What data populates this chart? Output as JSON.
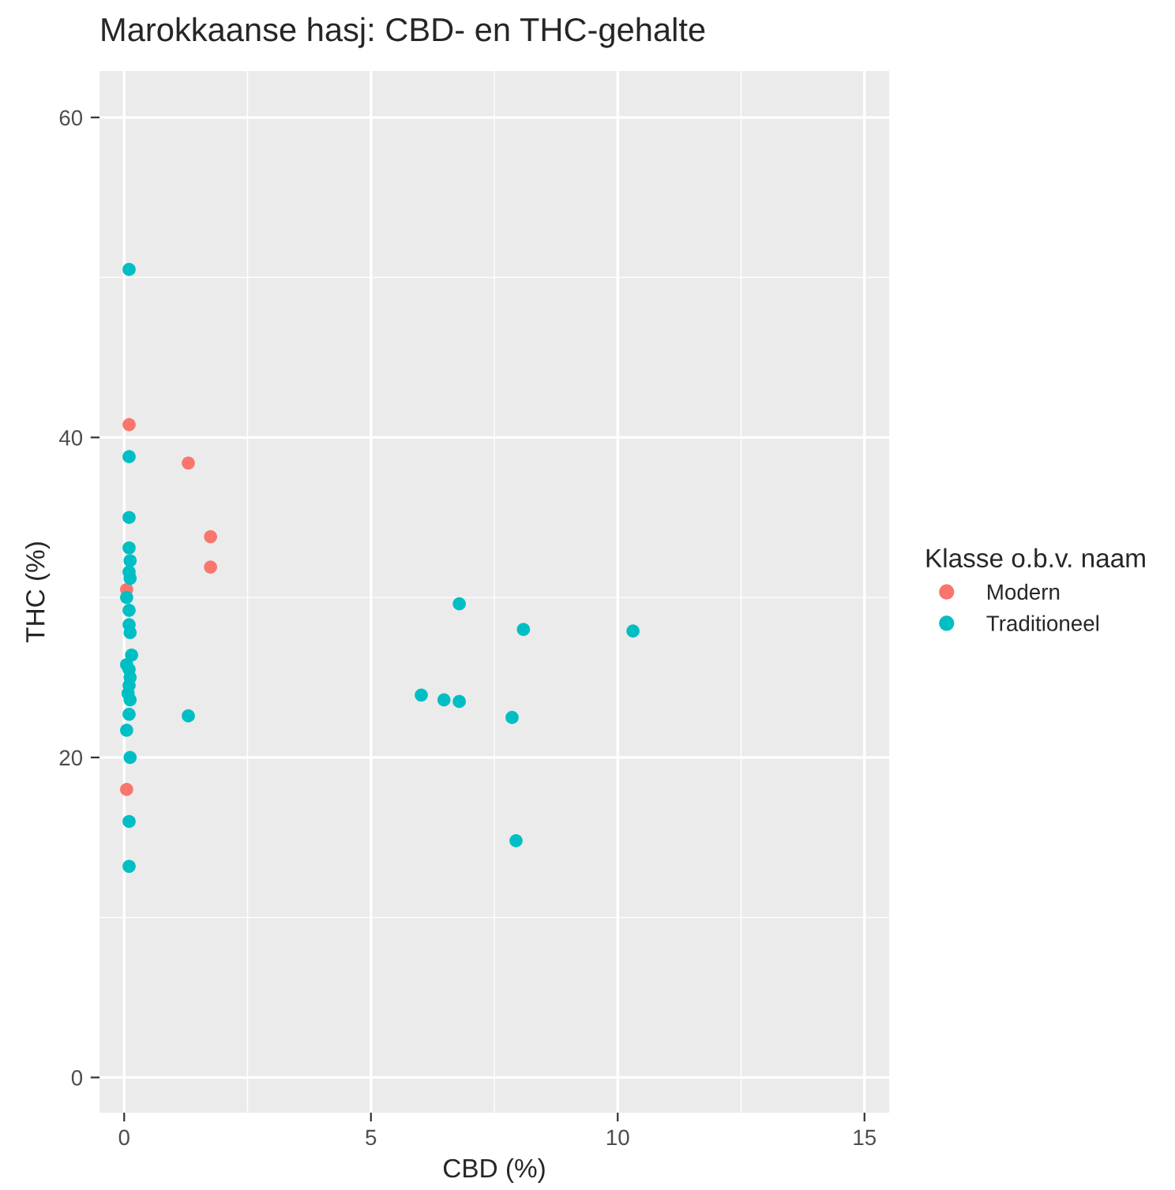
{
  "chart_data": {
    "type": "scatter",
    "title": "Marokkaanse hasj: CBD- en THC-gehalte",
    "xlabel": "CBD (%)",
    "ylabel": "THC (%)",
    "legend_title": "Klasse o.b.v. naam",
    "xlim": [
      -0.5,
      15.5
    ],
    "ylim": [
      -2.2,
      62.9
    ],
    "xticks": [
      0,
      5,
      10,
      15
    ],
    "yticks": [
      0,
      20,
      40,
      60
    ],
    "grid": true,
    "legend": "right",
    "marker": "circle",
    "series": [
      {
        "name": "Modern",
        "color": "#f8766d",
        "x": [
          0.1,
          1.3,
          1.75,
          1.75,
          0.05,
          0.05
        ],
        "values": [
          40.8,
          38.4,
          33.8,
          31.9,
          30.5,
          18.0
        ]
      },
      {
        "name": "Traditioneel",
        "color": "#00bfc4",
        "x": [
          0.1,
          0.1,
          0.1,
          0.1,
          0.12,
          0.1,
          0.12,
          0.05,
          0.1,
          0.1,
          0.12,
          0.15,
          0.05,
          0.1,
          0.12,
          0.1,
          0.08,
          0.12,
          0.1,
          0.05,
          0.12,
          0.1,
          0.1,
          1.3,
          6.02,
          6.48,
          6.79,
          6.79,
          8.09,
          10.31,
          7.86,
          7.94
        ],
        "values": [
          50.5,
          38.8,
          35.0,
          33.1,
          32.3,
          31.6,
          31.2,
          30.0,
          29.2,
          28.3,
          27.8,
          26.4,
          25.8,
          25.5,
          25.0,
          24.5,
          24.0,
          23.6,
          22.7,
          21.7,
          20.0,
          16.0,
          13.2,
          22.6,
          23.9,
          23.6,
          23.5,
          29.6,
          28.0,
          27.9,
          22.5,
          14.8
        ]
      }
    ]
  }
}
